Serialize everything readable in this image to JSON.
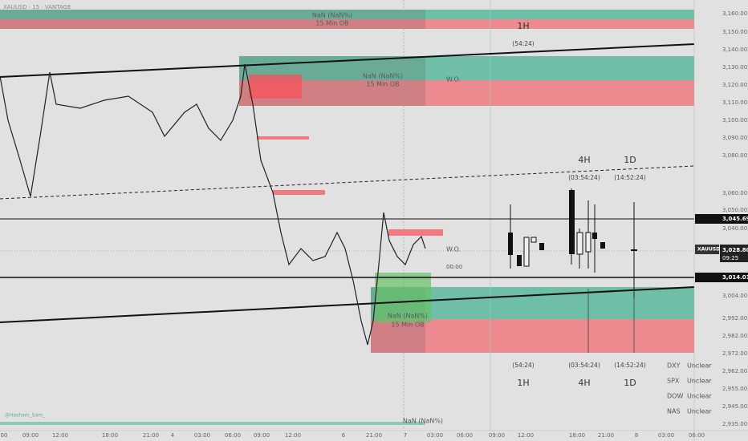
{
  "header": {
    "symbol": "XAUUSD · 15 · VANTAGE"
  },
  "price_axis": [
    "3,160.00",
    "3,150.00",
    "3,140.00",
    "3,130.00",
    "3,120.00",
    "3,110.00",
    "3,100.00",
    "3,090.00",
    "3,080.00",
    "3,060.00",
    "3,050.00",
    "3,040.00",
    "3,004.00",
    "2,992.00",
    "2,982.00",
    "2,972.00",
    "2,962.00",
    "2,955.00",
    "2,945.00",
    "2,935.00"
  ],
  "badges": {
    "upper": "3,045.69",
    "current_symbol": "XAUUSD",
    "current": "3,028.80",
    "countdown": "09:25",
    "lower": "3,014.01"
  },
  "time_axis": [
    "00",
    "09:00",
    "12:00",
    "18:00",
    "21:00",
    "4",
    "03:00",
    "06:00",
    "09:00",
    "12:00",
    "6",
    "21:00",
    "7",
    "03:00",
    "06:00",
    "09:00",
    "12:00",
    "18:00",
    "21:00",
    "8",
    "03:00",
    "06:00"
  ],
  "zones": {
    "top": {
      "value": "NaN (NaN%)",
      "label": "15 Min OB"
    },
    "middle": {
      "value": "NaN (NaN%)",
      "label": "15 Min OB",
      "tag": "W.O."
    },
    "bottom": {
      "value": "NaN (NaN%)",
      "label": "15 Min OB"
    }
  },
  "markers": {
    "wo": "W.O.",
    "midnight": "00:00",
    "bottom_value": "NaN (NaN%)"
  },
  "timeframes": [
    {
      "name": "1H",
      "timer": "(54:24)"
    },
    {
      "name": "4H",
      "timer": "(03:54:24)"
    },
    {
      "name": "1D",
      "timer": "(14:52:24)"
    }
  ],
  "correlation_table": [
    [
      "DXY",
      "Unclear"
    ],
    [
      "SPX",
      "Unclear"
    ],
    [
      "DOW",
      "Unclear"
    ],
    [
      "NAS",
      "Unclear"
    ]
  ],
  "watermark": "@Hasham_Sam_"
}
